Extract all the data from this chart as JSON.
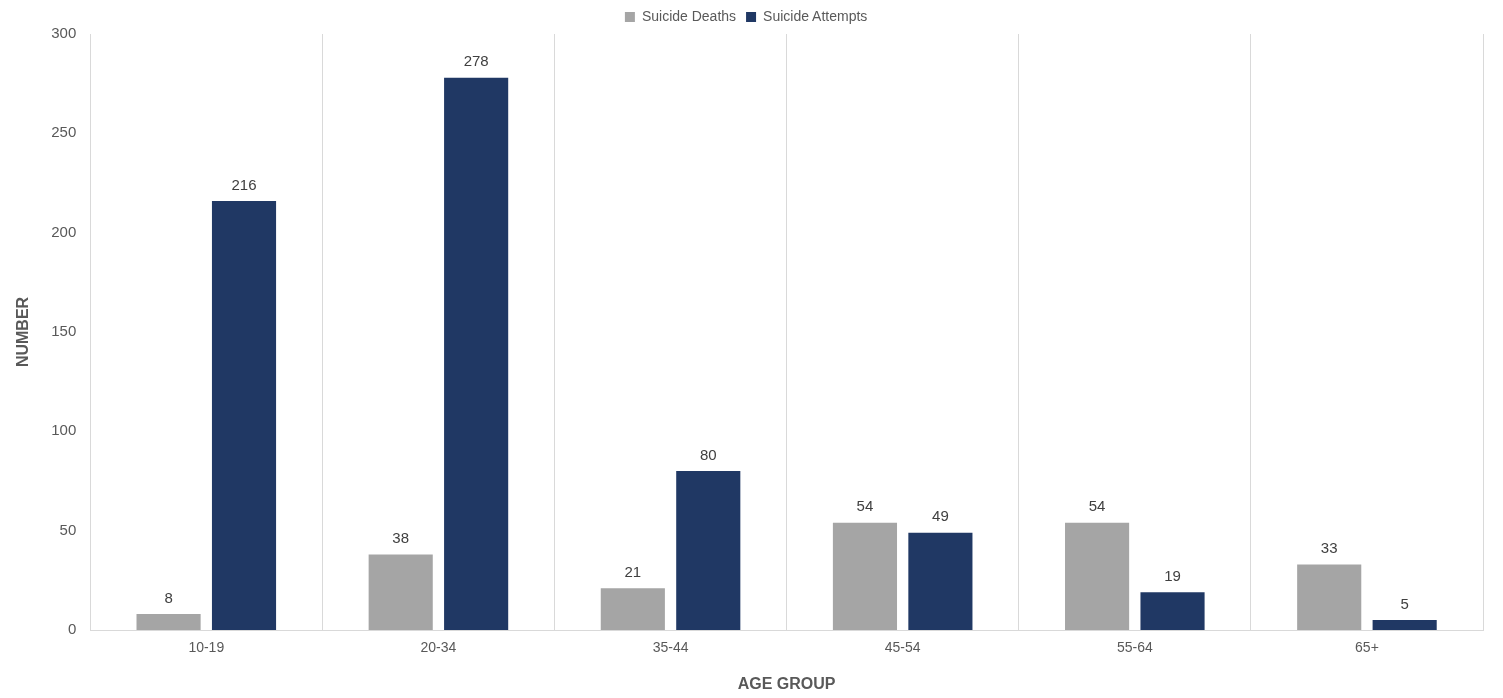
{
  "chart_data": {
    "type": "bar",
    "xlabel": "AGE GROUP",
    "ylabel": "NUMBER",
    "categories": [
      "10-19",
      "20-34",
      "35-44",
      "45-54",
      "55-64",
      "65+"
    ],
    "series": [
      {
        "name": "Suicide Deaths",
        "color": "#a5a5a5",
        "values": [
          8,
          38,
          21,
          54,
          54,
          33
        ]
      },
      {
        "name": "Suicide Attempts",
        "color": "#203864",
        "values": [
          216,
          278,
          80,
          49,
          19,
          5
        ]
      }
    ],
    "ylim": [
      0,
      300
    ],
    "yticks": [
      0,
      50,
      100,
      150,
      200,
      250,
      300
    ],
    "grid": "x",
    "legend": "top",
    "data_labels": true
  }
}
